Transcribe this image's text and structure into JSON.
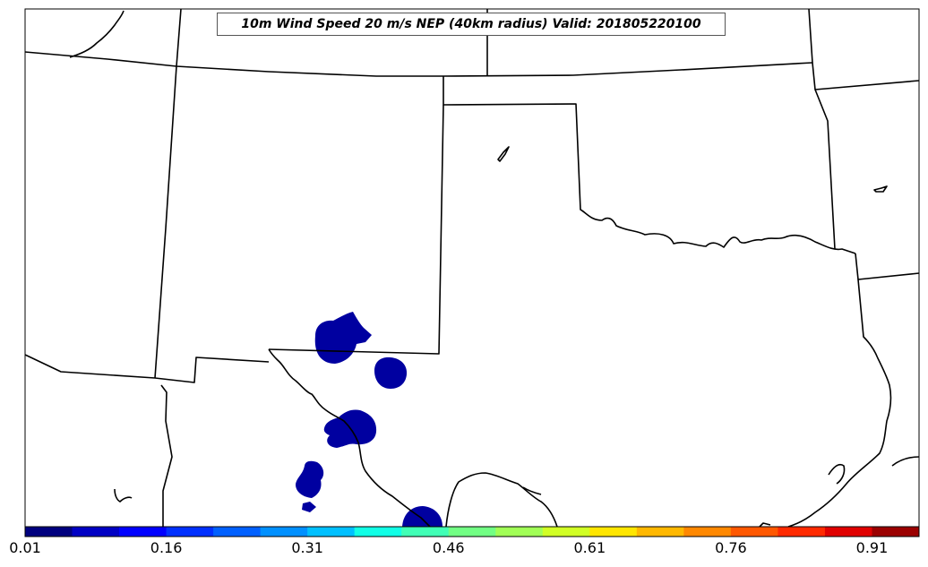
{
  "title": "10m Wind Speed 20 m/s NEP (40km radius) Valid: 201805220100",
  "colorbar": {
    "colors": [
      "#00007f",
      "#0000c4",
      "#0000ff",
      "#0030ff",
      "#0060ff",
      "#0090ff",
      "#00c0ff",
      "#11ffe6",
      "#41ffb6",
      "#72ff84",
      "#a1ff56",
      "#d1ff25",
      "#ffe600",
      "#ffb800",
      "#ff8800",
      "#ff5800",
      "#ff2a00",
      "#e00000",
      "#9b0000"
    ],
    "tick_labels": [
      "0.01",
      "0.16",
      "0.31",
      "0.46",
      "0.61",
      "0.76",
      "0.91"
    ]
  },
  "regions": [
    {
      "name": "probability-area-1",
      "value": 0.01
    },
    {
      "name": "probability-area-2",
      "value": 0.01
    },
    {
      "name": "probability-area-3",
      "value": 0.01
    },
    {
      "name": "probability-area-4",
      "value": 0.01
    },
    {
      "name": "probability-area-5",
      "value": 0.01
    }
  ]
}
